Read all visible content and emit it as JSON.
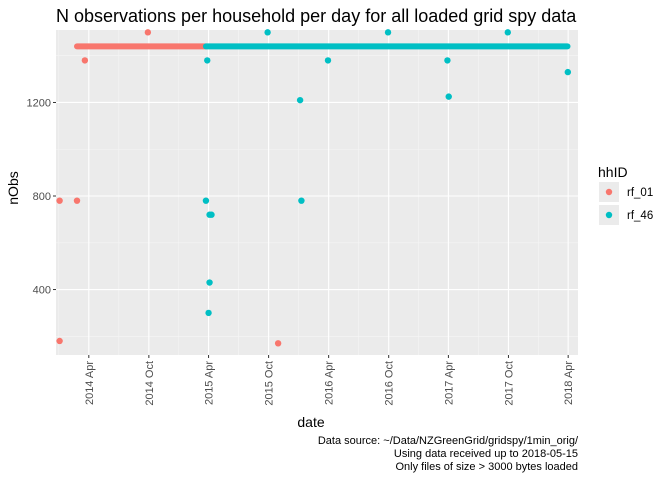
{
  "chart_data": {
    "type": "scatter",
    "title": "N observations per household per day for all loaded grid spy data",
    "xlabel": "date",
    "ylabel": "nObs",
    "x_ticks": [
      "2014 Apr",
      "2014 Oct",
      "2015 Apr",
      "2015 Oct",
      "2016 Apr",
      "2016 Oct",
      "2017 Apr",
      "2017 Oct",
      "2018 Apr"
    ],
    "y_ticks": [
      400,
      800,
      1200
    ],
    "xlim": [
      "2013-12-22",
      "2018-05-01"
    ],
    "ylim": [
      120,
      1510
    ],
    "grid": true,
    "legend_title": "hhID",
    "legend_position": "right",
    "series": [
      {
        "name": "rf_01",
        "color": "#F8766D",
        "runs": [
          {
            "x_start": "2014-02-24",
            "x_end": "2015-03-24",
            "y": 1440
          }
        ],
        "points": [
          {
            "x": "2014-01-02",
            "y": 780
          },
          {
            "x": "2014-01-02",
            "y": 180
          },
          {
            "x": "2014-02-24",
            "y": 780
          },
          {
            "x": "2014-03-20",
            "y": 1380
          },
          {
            "x": "2014-09-28",
            "y": 1500
          },
          {
            "x": "2015-10-30",
            "y": 170
          }
        ]
      },
      {
        "name": "rf_46",
        "color": "#00BFC4",
        "runs": [
          {
            "x_start": "2015-03-24",
            "x_end": "2018-03-30",
            "y": 1440
          }
        ],
        "points": [
          {
            "x": "2015-03-24",
            "y": 780
          },
          {
            "x": "2015-03-28",
            "y": 1380
          },
          {
            "x": "2015-04-01",
            "y": 300
          },
          {
            "x": "2015-04-04",
            "y": 430
          },
          {
            "x": "2015-04-04",
            "y": 720
          },
          {
            "x": "2015-04-10",
            "y": 720
          },
          {
            "x": "2015-09-28",
            "y": 1500
          },
          {
            "x": "2016-01-05",
            "y": 1210
          },
          {
            "x": "2016-01-09",
            "y": 780
          },
          {
            "x": "2016-03-30",
            "y": 1380
          },
          {
            "x": "2016-09-29",
            "y": 1500
          },
          {
            "x": "2017-03-29",
            "y": 1380
          },
          {
            "x": "2017-04-02",
            "y": 1225
          },
          {
            "x": "2017-09-29",
            "y": 1500
          },
          {
            "x": "2018-03-31",
            "y": 1330
          }
        ]
      }
    ]
  },
  "caption": [
    "Data source: ~/Data/NZGreenGrid/gridspy/1min_orig/",
    "Using data received up to 2018-05-15",
    "Only files of size > 3000 bytes loaded"
  ]
}
